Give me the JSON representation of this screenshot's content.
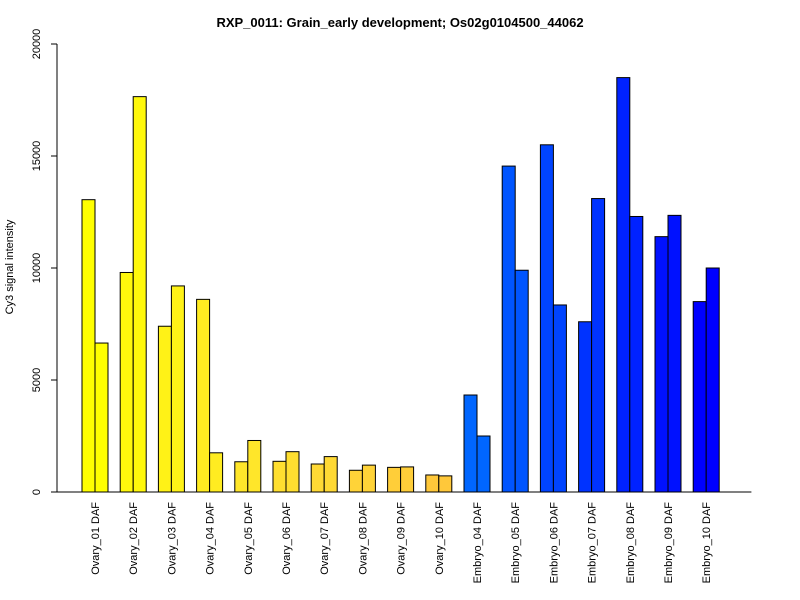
{
  "chart_data": {
    "type": "bar",
    "title": "RXP_0011: Grain_early development; Os02g0104500_44062",
    "xlabel": "",
    "ylabel": "Cy3 signal intensity",
    "ylim": [
      0,
      20000
    ],
    "yticks": [
      0,
      5000,
      10000,
      15000,
      20000
    ],
    "grid": false,
    "legend": "none",
    "categories": [
      "Ovary_01 DAF",
      "Ovary_02 DAF",
      "Ovary_03 DAF",
      "Ovary_04 DAF",
      "Ovary_05 DAF",
      "Ovary_06 DAF",
      "Ovary_07 DAF",
      "Ovary_08 DAF",
      "Ovary_09 DAF",
      "Ovary_10 DAF",
      "Embryo_04 DAF",
      "Embryo_05 DAF",
      "Embryo_06 DAF",
      "Embryo_07 DAF",
      "Embryo_08 DAF",
      "Embryo_09 DAF",
      "Embryo_10 DAF"
    ],
    "series": [
      {
        "values": [
          13050,
          9800,
          7400,
          8600,
          1350,
          1370,
          1250,
          970,
          1100,
          760,
          4330,
          14550,
          15500,
          7600,
          18500,
          11400,
          8500
        ]
      },
      {
        "values": [
          6650,
          17650,
          9200,
          1750,
          2300,
          1800,
          1580,
          1200,
          1120,
          720,
          2500,
          9900,
          8350,
          13100,
          12300,
          12350,
          10000
        ]
      }
    ],
    "category_colors": [
      "#FFFF00",
      "#FFF80C",
      "#FFF217",
      "#FFEC21",
      "#FFE62A",
      "#FFDF30",
      "#FFD935",
      "#FFD338",
      "#FFCE39",
      "#FFC83A",
      "#0066FF",
      "#0055FF",
      "#0044FF",
      "#0033FF",
      "#0022FF",
      "#0011FF",
      "#0000FF"
    ]
  }
}
